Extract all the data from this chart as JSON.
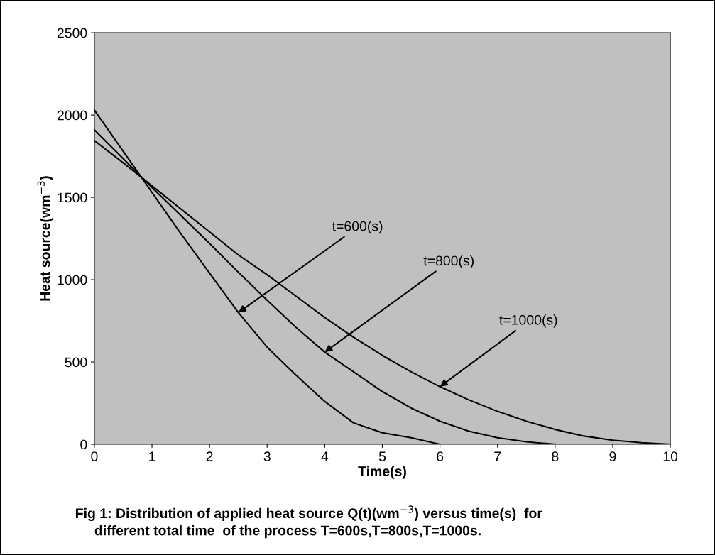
{
  "chart_data": {
    "type": "line",
    "xlabel": "Time(s)",
    "ylabel": "Heat source(wm$^{−3}$)",
    "xlim": [
      0,
      10
    ],
    "ylim": [
      0,
      2500
    ],
    "xticks": [
      0,
      1,
      2,
      3,
      4,
      5,
      6,
      7,
      8,
      9,
      10
    ],
    "yticks": [
      0,
      500,
      1000,
      1500,
      2000,
      2500
    ],
    "grid": false,
    "legend": false,
    "marker": "none",
    "line_style": "solid",
    "series": [
      {
        "color": "#000000",
        "x": [
          0,
          0.5,
          1,
          1.5,
          2,
          2.5,
          3,
          3.5,
          4,
          4.5,
          5,
          5.5,
          6
        ],
        "values": [
          2030,
          1780,
          1530,
          1280,
          1040,
          800,
          590,
          420,
          260,
          130,
          70,
          40,
          0
        ]
      },
      {
        "color": "#000000",
        "x": [
          0,
          0.5,
          1,
          1.5,
          2,
          2.5,
          3,
          3.5,
          4,
          4.5,
          5,
          5.5,
          6,
          6.5,
          7,
          7.5,
          8
        ],
        "values": [
          1910,
          1735,
          1560,
          1390,
          1220,
          1045,
          875,
          710,
          560,
          440,
          320,
          220,
          140,
          80,
          40,
          15,
          0
        ]
      },
      {
        "color": "#000000",
        "x": [
          0,
          0.5,
          1,
          1.5,
          2,
          2.5,
          3,
          3.5,
          4,
          4.5,
          5,
          5.5,
          6,
          6.5,
          7,
          7.5,
          8,
          8.5,
          9,
          9.5,
          10
        ],
        "values": [
          1845,
          1710,
          1570,
          1430,
          1290,
          1150,
          1030,
          900,
          770,
          650,
          540,
          440,
          350,
          270,
          200,
          140,
          90,
          50,
          25,
          10,
          0
        ]
      }
    ],
    "annotations": [
      {
        "text": "t=600(s)",
        "x": 2.5,
        "y": 800
      },
      {
        "text": "t=800(s)",
        "x": 4,
        "y": 560
      },
      {
        "text": "t=1000(s)",
        "x": 6,
        "y": 350
      },
      "Fig 1: Distribution of applied heat source Q(t)(wm$^{−3}$) versus time(s)  for",
      "different total time  of the process T=600s,T=800s,T=1000s."
    ]
  }
}
